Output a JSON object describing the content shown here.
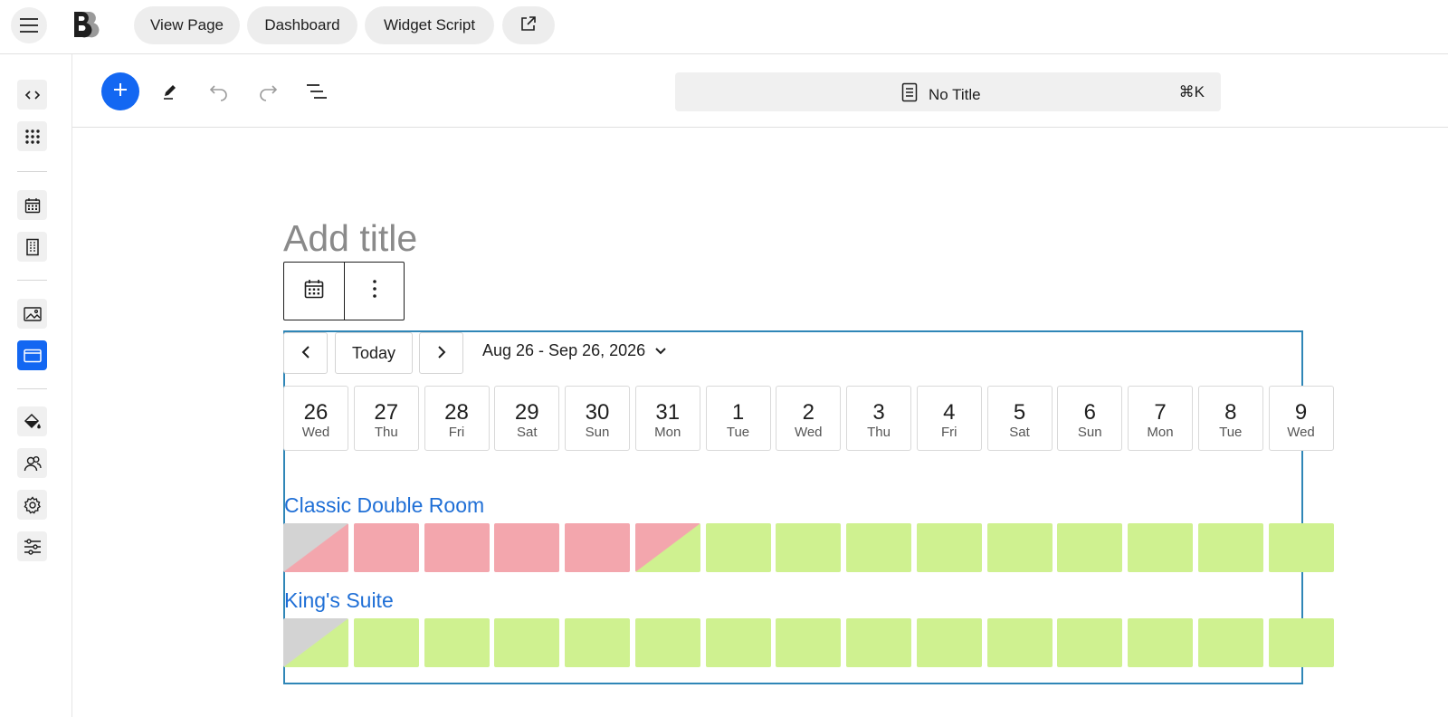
{
  "topbar": {
    "menu_icon": "hamburger-icon",
    "logo": "brand-logo",
    "buttons": [
      "View Page",
      "Dashboard",
      "Widget Script"
    ],
    "external_icon": "external-link-icon"
  },
  "rail": {
    "items": [
      "code-icon",
      "grid-icon",
      "calendar-icon",
      "building-icon",
      "image-icon",
      "browser-window-icon",
      "paint-bucket-icon",
      "users-icon",
      "settings-icon",
      "sliders-icon"
    ],
    "active": "browser-window-icon",
    "accent": "#1367f2"
  },
  "toolbar": {
    "icons": [
      "plus-icon",
      "pencil-icon",
      "undo-icon",
      "redo-icon",
      "list-view-icon"
    ],
    "command": {
      "title": "No Title",
      "shortcut": "⌘K",
      "icon": "document-icon"
    }
  },
  "editor": {
    "title_placeholder": "Add title",
    "block_toolbar": [
      "calendar-icon",
      "more-vertical-icon"
    ]
  },
  "calendar": {
    "today_label": "Today",
    "range_label": "Aug 26 - Sep 26, 2026",
    "days": [
      {
        "num": "26",
        "dow": "Wed"
      },
      {
        "num": "27",
        "dow": "Thu"
      },
      {
        "num": "28",
        "dow": "Fri"
      },
      {
        "num": "29",
        "dow": "Sat"
      },
      {
        "num": "30",
        "dow": "Sun"
      },
      {
        "num": "31",
        "dow": "Mon"
      },
      {
        "num": "1",
        "dow": "Tue"
      },
      {
        "num": "2",
        "dow": "Wed"
      },
      {
        "num": "3",
        "dow": "Thu"
      },
      {
        "num": "4",
        "dow": "Fri"
      },
      {
        "num": "5",
        "dow": "Sat"
      },
      {
        "num": "6",
        "dow": "Sun"
      },
      {
        "num": "7",
        "dow": "Mon"
      },
      {
        "num": "8",
        "dow": "Tue"
      },
      {
        "num": "9",
        "dow": "Wed"
      }
    ],
    "rooms": [
      {
        "name": "Classic Double Room",
        "cells": [
          "past-booked",
          "booked",
          "booked",
          "booked",
          "booked",
          "checkout",
          "free",
          "free",
          "free",
          "free",
          "free",
          "free",
          "free",
          "free",
          "free"
        ]
      },
      {
        "name": "King's Suite",
        "cells": [
          "past-free",
          "free",
          "free",
          "free",
          "free",
          "free",
          "free",
          "free",
          "free",
          "free",
          "free",
          "free",
          "free",
          "free",
          "free"
        ]
      }
    ],
    "colors": {
      "booked": "#f3a6ad",
      "free": "#cff190",
      "past": "#d3d3d3",
      "border": "#2f86b7"
    }
  }
}
